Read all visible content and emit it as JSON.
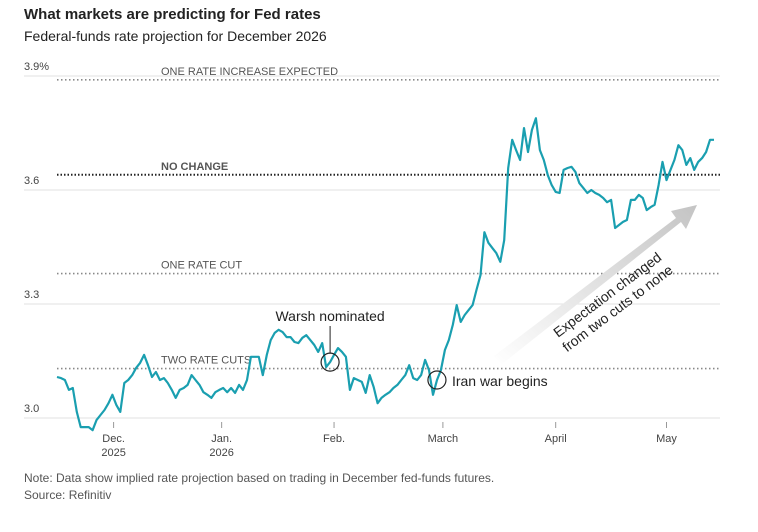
{
  "chart_data": {
    "type": "line",
    "title": "What markets are predicting for Fed rates",
    "subtitle": "Federal-funds rate projection for December 2026",
    "note": "Note: Data show implied rate projection based on trading in December fed-funds futures.",
    "source": "Source: Refinitiv",
    "color": "#1a9fb0",
    "ylim": [
      2.95,
      3.92
    ],
    "yticks": [
      {
        "value": 3,
        "label": "3.0"
      },
      3.3,
      3.6,
      {
        "value": 3.9,
        "label": "3.9%"
      }
    ],
    "xlim": [
      0,
      166
    ],
    "xticks": [
      {
        "value": 14.3,
        "label": "Dec.",
        "sublabel": "2025"
      },
      {
        "value": 41.6,
        "label": "Jan.",
        "sublabel": "2026"
      },
      {
        "value": 70,
        "label": "Feb."
      },
      {
        "value": 97.5,
        "label": "March"
      },
      {
        "value": 126,
        "label": "April"
      },
      {
        "value": 154,
        "label": "May"
      }
    ],
    "grid": true,
    "reference_lines": [
      {
        "label": "ONE RATE INCREASE EXPECTED",
        "value": 3.89
      },
      {
        "label": "NO CHANGE",
        "value": 3.64,
        "bold": true
      },
      {
        "label": "ONE RATE CUT",
        "value": 3.38
      },
      {
        "label": "TWO RATE CUTS",
        "value": 3.13
      }
    ],
    "annotations": [
      "Warsh nominated",
      "Iran war begins"
    ],
    "trend_annotation": [
      "Expectation changed",
      "from two cuts to none"
    ],
    "values": [
      3.108,
      3.105,
      3.1,
      3.074,
      3.079,
      3.016,
      2.976,
      2.976,
      2.976,
      2.968,
      2.995,
      3.008,
      3.021,
      3.039,
      3.061,
      3.034,
      3.016,
      3.092,
      3.1,
      3.113,
      3.132,
      3.145,
      3.166,
      3.139,
      3.108,
      3.121,
      3.1,
      3.105,
      3.092,
      3.074,
      3.053,
      3.074,
      3.079,
      3.087,
      3.113,
      3.1,
      3.087,
      3.068,
      3.061,
      3.053,
      3.068,
      3.074,
      3.079,
      3.068,
      3.079,
      3.066,
      3.087,
      3.074,
      3.1,
      3.161,
      3.161,
      3.161,
      3.113,
      3.166,
      3.205,
      3.224,
      3.232,
      3.226,
      3.213,
      3.213,
      3.2,
      3.197,
      3.211,
      3.218,
      3.205,
      3.192,
      3.174,
      3.197,
      3.134,
      3.147,
      3.166,
      3.184,
      3.174,
      3.161,
      3.074,
      3.105,
      3.1,
      3.095,
      3.066,
      3.113,
      3.082,
      3.039,
      3.053,
      3.061,
      3.068,
      3.079,
      3.087,
      3.1,
      3.113,
      3.139,
      3.105,
      3.1,
      3.113,
      3.153,
      3.126,
      3.061,
      3.1,
      3.126,
      3.179,
      3.205,
      3.245,
      3.297,
      3.253,
      3.271,
      3.284,
      3.297,
      3.337,
      3.376,
      3.489,
      3.461,
      3.447,
      3.434,
      3.411,
      3.468,
      3.658,
      3.732,
      3.705,
      3.679,
      3.763,
      3.7,
      3.758,
      3.789,
      3.705,
      3.679,
      3.639,
      3.613,
      3.595,
      3.592,
      3.653,
      3.658,
      3.661,
      3.647,
      3.618,
      3.605,
      3.592,
      3.6,
      3.592,
      3.587,
      3.579,
      3.568,
      3.574,
      3.5,
      3.508,
      3.516,
      3.521,
      3.574,
      3.574,
      3.587,
      3.579,
      3.547,
      3.555,
      3.561,
      3.613,
      3.674,
      3.626,
      3.653,
      3.679,
      3.718,
      3.705,
      3.666,
      3.684,
      3.653,
      3.674,
      3.684,
      3.7,
      3.732,
      3.732
    ]
  }
}
